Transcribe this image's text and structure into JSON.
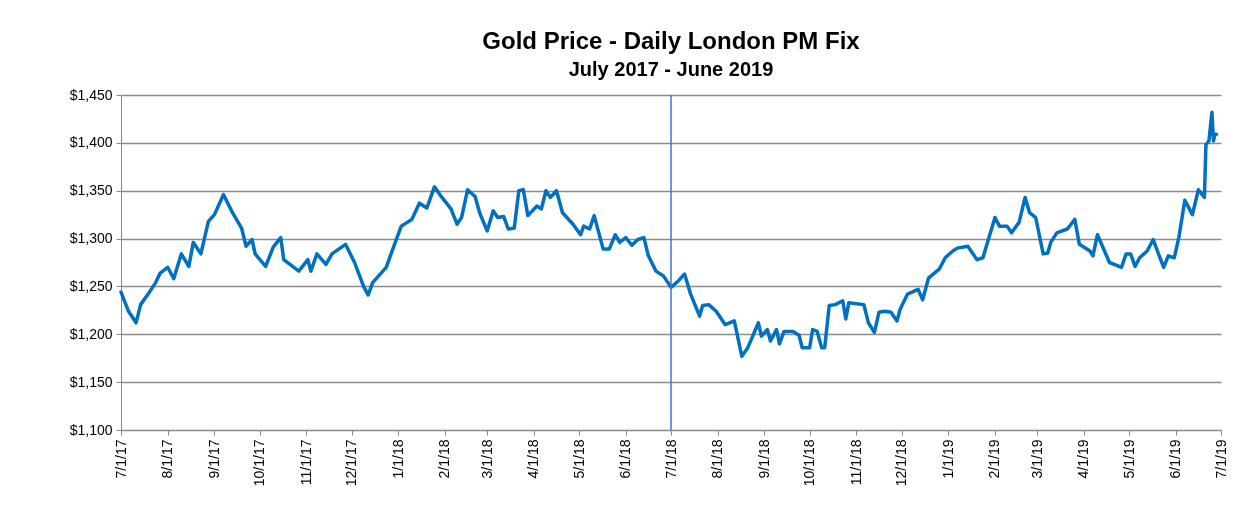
{
  "chart_data": {
    "type": "line",
    "title": "Gold Price - Daily London PM Fix",
    "subtitle": "July 2017 - June 2019",
    "x": [
      "2017-07-01",
      "2017-07-06",
      "2017-07-11",
      "2017-07-14",
      "2017-07-19",
      "2017-07-24",
      "2017-07-27",
      "2017-08-01",
      "2017-08-05",
      "2017-08-10",
      "2017-08-15",
      "2017-08-18",
      "2017-08-23",
      "2017-08-28",
      "2017-09-01",
      "2017-09-07",
      "2017-09-13",
      "2017-09-19",
      "2017-09-22",
      "2017-09-26",
      "2017-09-28",
      "2017-10-05",
      "2017-10-10",
      "2017-10-15",
      "2017-10-17",
      "2017-10-27",
      "2017-11-02",
      "2017-11-04",
      "2017-11-08",
      "2017-11-14",
      "2017-11-18",
      "2017-11-27",
      "2017-12-03",
      "2017-12-09",
      "2017-12-12",
      "2017-12-15",
      "2017-12-24",
      "2017-12-30",
      "2018-01-03",
      "2018-01-10",
      "2018-01-15",
      "2018-01-20",
      "2018-01-25",
      "2018-01-30",
      "2018-02-05",
      "2018-02-09",
      "2018-02-12",
      "2018-02-16",
      "2018-02-21",
      "2018-02-24",
      "2018-03-01",
      "2018-03-05",
      "2018-03-08",
      "2018-03-12",
      "2018-03-15",
      "2018-03-19",
      "2018-03-22",
      "2018-03-25",
      "2018-03-28",
      "2018-04-03",
      "2018-04-06",
      "2018-04-09",
      "2018-04-12",
      "2018-04-16",
      "2018-04-20",
      "2018-04-27",
      "2018-05-02",
      "2018-05-04",
      "2018-05-08",
      "2018-05-11",
      "2018-05-17",
      "2018-05-21",
      "2018-05-25",
      "2018-05-28",
      "2018-06-01",
      "2018-06-05",
      "2018-06-09",
      "2018-06-13",
      "2018-06-16",
      "2018-06-21",
      "2018-06-26",
      "2018-07-01",
      "2018-07-06",
      "2018-07-10",
      "2018-07-14",
      "2018-07-20",
      "2018-07-22",
      "2018-07-26",
      "2018-07-31",
      "2018-08-06",
      "2018-08-12",
      "2018-08-17",
      "2018-08-21",
      "2018-08-28",
      "2018-08-30",
      "2018-09-03",
      "2018-09-05",
      "2018-09-09",
      "2018-09-11",
      "2018-09-14",
      "2018-09-20",
      "2018-09-24",
      "2018-09-26",
      "2018-10-01",
      "2018-10-03",
      "2018-10-06",
      "2018-10-09",
      "2018-10-11",
      "2018-10-14",
      "2018-10-18",
      "2018-10-23",
      "2018-10-25",
      "2018-10-27",
      "2018-11-06",
      "2018-11-09",
      "2018-11-13",
      "2018-11-16",
      "2018-11-20",
      "2018-11-24",
      "2018-11-28",
      "2018-11-30",
      "2018-12-05",
      "2018-12-12",
      "2018-12-15",
      "2018-12-19",
      "2018-12-26",
      "2018-12-30",
      "2019-01-04",
      "2019-01-07",
      "2019-01-14",
      "2019-01-20",
      "2019-01-24",
      "2019-02-01",
      "2019-02-04",
      "2019-02-09",
      "2019-02-12",
      "2019-02-17",
      "2019-02-21",
      "2019-02-24",
      "2019-02-28",
      "2019-03-05",
      "2019-03-08",
      "2019-03-10",
      "2019-03-14",
      "2019-03-21",
      "2019-03-26",
      "2019-03-29",
      "2019-04-05",
      "2019-04-07",
      "2019-04-10",
      "2019-04-18",
      "2019-04-26",
      "2019-04-29",
      "2019-05-02",
      "2019-05-05",
      "2019-05-08",
      "2019-05-13",
      "2019-05-17",
      "2019-05-21",
      "2019-05-24",
      "2019-05-27",
      "2019-05-31",
      "2019-06-03",
      "2019-06-07",
      "2019-06-12",
      "2019-06-16",
      "2019-06-20",
      "2019-06-21",
      "2019-06-23",
      "2019-06-25",
      "2019-06-26",
      "2019-06-27",
      "2019-06-28"
    ],
    "series": [
      {
        "color": "#0070c0",
        "values": [
          1244,
          1224,
          1212,
          1231,
          1242,
          1254,
          1264,
          1270,
          1258,
          1284,
          1271,
          1296,
          1284,
          1318,
          1325,
          1346,
          1327,
          1311,
          1292,
          1299,
          1284,
          1271,
          1291,
          1301,
          1278,
          1266,
          1278,
          1266,
          1284,
          1273,
          1284,
          1294,
          1275,
          1250,
          1241,
          1254,
          1270,
          1296,
          1313,
          1320,
          1337,
          1332,
          1354,
          1343,
          1331,
          1315,
          1322,
          1351,
          1344,
          1327,
          1308,
          1329,
          1322,
          1323,
          1310,
          1311,
          1350,
          1351,
          1324,
          1334,
          1331,
          1350,
          1343,
          1350,
          1327,
          1315,
          1304,
          1313,
          1310,
          1324,
          1289,
          1289,
          1304,
          1296,
          1301,
          1293,
          1299,
          1301,
          1282,
          1266,
          1261,
          1249,
          1256,
          1263,
          1242,
          1219,
          1230,
          1231,
          1224,
          1210,
          1214,
          1177,
          1186,
          1212,
          1198,
          1205,
          1193,
          1205,
          1190,
          1203,
          1203,
          1199,
          1186,
          1186,
          1205,
          1203,
          1186,
          1186,
          1230,
          1231,
          1235,
          1216,
          1233,
          1231,
          1212,
          1202,
          1223,
          1224,
          1223,
          1214,
          1226,
          1242,
          1247,
          1236,
          1259,
          1268,
          1280,
          1287,
          1290,
          1292,
          1278,
          1280,
          1322,
          1313,
          1313,
          1306,
          1317,
          1343,
          1327,
          1322,
          1284,
          1285,
          1296,
          1306,
          1310,
          1320,
          1294,
          1287,
          1282,
          1304,
          1275,
          1270,
          1284,
          1284,
          1271,
          1280,
          1287,
          1299,
          1282,
          1270,
          1282,
          1280,
          1301,
          1340,
          1325,
          1351,
          1343,
          1398,
          1402,
          1432,
          1402,
          1409,
          1409
        ]
      }
    ],
    "xlim": [
      "2017-07-01",
      "2019-07-01"
    ],
    "xticks": [
      {
        "value": "2017-07-01",
        "label": "7/1/17"
      },
      {
        "value": "2017-08-01",
        "label": "8/1/17"
      },
      {
        "value": "2017-09-01",
        "label": "9/1/17"
      },
      {
        "value": "2017-10-01",
        "label": "10/1/17"
      },
      {
        "value": "2017-11-01",
        "label": "11/1/17"
      },
      {
        "value": "2017-12-01",
        "label": "12/1/17"
      },
      {
        "value": "2018-01-01",
        "label": "1/1/18"
      },
      {
        "value": "2018-02-01",
        "label": "2/1/18"
      },
      {
        "value": "2018-03-01",
        "label": "3/1/18"
      },
      {
        "value": "2018-04-01",
        "label": "4/1/18"
      },
      {
        "value": "2018-05-01",
        "label": "5/1/18"
      },
      {
        "value": "2018-06-01",
        "label": "6/1/18"
      },
      {
        "value": "2018-07-01",
        "label": "7/1/18"
      },
      {
        "value": "2018-08-01",
        "label": "8/1/18"
      },
      {
        "value": "2018-09-01",
        "label": "9/1/18"
      },
      {
        "value": "2018-10-01",
        "label": "10/1/18"
      },
      {
        "value": "2018-11-01",
        "label": "11/1/18"
      },
      {
        "value": "2018-12-01",
        "label": "12/1/18"
      },
      {
        "value": "2019-01-01",
        "label": "1/1/19"
      },
      {
        "value": "2019-02-01",
        "label": "2/1/19"
      },
      {
        "value": "2019-03-01",
        "label": "3/1/19"
      },
      {
        "value": "2019-04-01",
        "label": "4/1/19"
      },
      {
        "value": "2019-05-01",
        "label": "5/1/19"
      },
      {
        "value": "2019-06-01",
        "label": "6/1/19"
      },
      {
        "value": "2019-07-01",
        "label": "7/1/19"
      }
    ],
    "ylim": [
      1100,
      1450
    ],
    "yticks": [
      {
        "value": 1100,
        "label": "$1,100"
      },
      {
        "value": 1150,
        "label": "$1,150"
      },
      {
        "value": 1200,
        "label": "$1,200"
      },
      {
        "value": 1250,
        "label": "$1,250"
      },
      {
        "value": 1300,
        "label": "$1,300"
      },
      {
        "value": 1350,
        "label": "$1,350"
      },
      {
        "value": 1400,
        "label": "$1,400"
      },
      {
        "value": 1450,
        "label": "$1,450"
      }
    ],
    "grid": "y",
    "marker": "none",
    "line_style": "solid",
    "ref_lines": [
      {
        "axis": "x",
        "value": "2018-07-01",
        "color": "#4472c4"
      }
    ]
  }
}
